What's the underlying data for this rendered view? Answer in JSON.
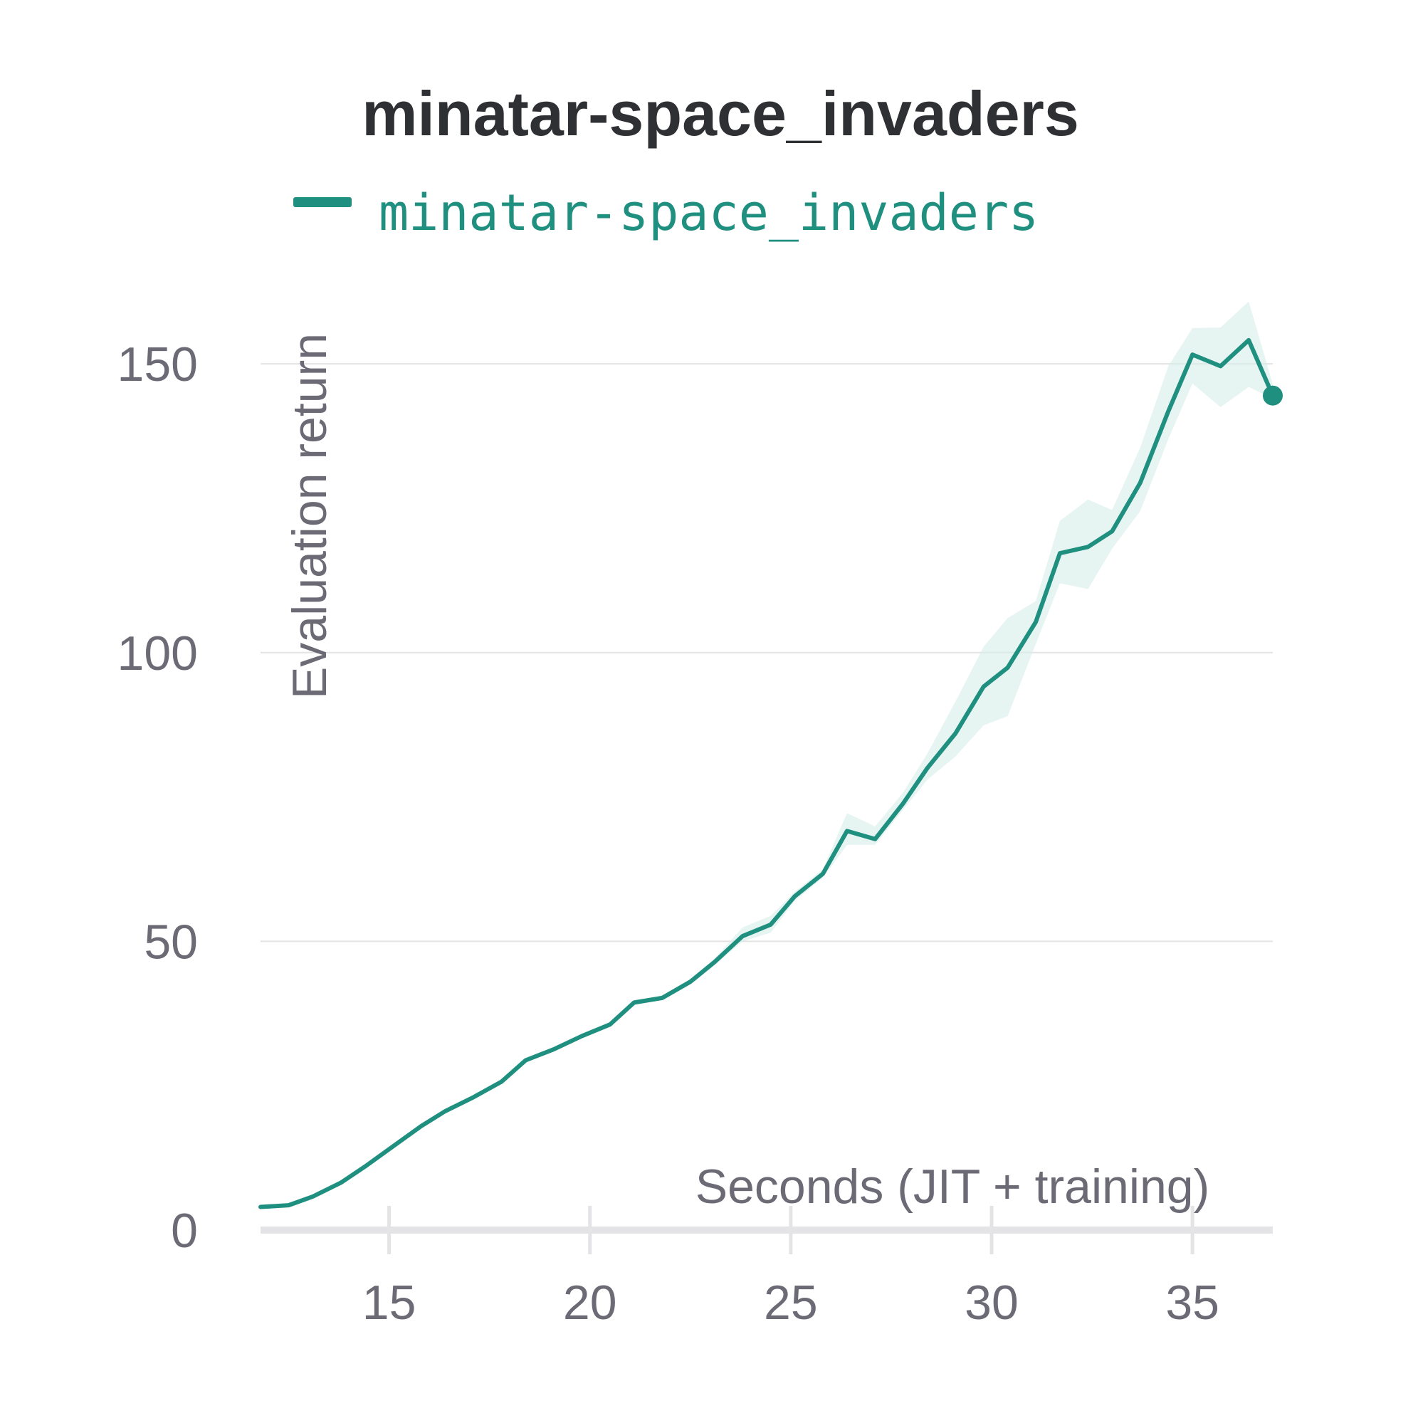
{
  "colors": {
    "series": "#1f8f80",
    "band": "#d6ede9",
    "grid": "#e3e3e3",
    "axis": "#e4e4e6",
    "text": "#6b6a75",
    "title": "#2f3034"
  },
  "chart_data": {
    "type": "line",
    "title": "minatar-space_invaders",
    "xlabel": "Seconds (JIT + training)",
    "ylabel": "Evaluation return",
    "xlim": [
      11.8,
      37.0
    ],
    "ylim": [
      0,
      160
    ],
    "xticks": [
      15,
      20,
      25,
      30,
      35
    ],
    "yticks": [
      0,
      50,
      100,
      150
    ],
    "grid": "horizontal",
    "legend": "top",
    "series": [
      {
        "name": "minatar-space_invaders",
        "x": [
          11.8,
          12.5,
          13.1,
          13.8,
          14.4,
          15.1,
          15.8,
          16.4,
          17.1,
          17.8,
          18.4,
          19.1,
          19.8,
          20.5,
          21.1,
          21.8,
          22.5,
          23.1,
          23.8,
          24.5,
          25.1,
          25.8,
          26.4,
          27.1,
          27.8,
          28.4,
          29.1,
          29.8,
          30.4,
          31.1,
          31.7,
          32.4,
          33.0,
          33.7,
          34.4,
          35.0,
          35.7,
          36.4,
          37.0
        ],
        "y": [
          4.0,
          4.3,
          5.8,
          8.2,
          11.0,
          14.5,
          18.0,
          20.6,
          23.0,
          25.7,
          29.4,
          31.3,
          33.6,
          35.6,
          39.4,
          40.2,
          43.0,
          46.4,
          50.9,
          52.9,
          57.8,
          61.7,
          69.1,
          67.7,
          73.9,
          80.0,
          86.0,
          94.1,
          97.4,
          105.3,
          117.2,
          118.3,
          121.0,
          129.4,
          141.8,
          151.6,
          149.6,
          154.1,
          144.5
        ],
        "y_lower": [
          4.0,
          4.3,
          5.8,
          8.2,
          11.0,
          14.5,
          18.0,
          20.6,
          23.0,
          25.7,
          29.0,
          31.0,
          33.2,
          35.2,
          39.0,
          39.8,
          42.5,
          45.8,
          50.0,
          51.5,
          57.0,
          61.0,
          66.7,
          66.7,
          72.8,
          78.0,
          82.0,
          87.4,
          89.0,
          101.5,
          112.0,
          111.0,
          118.0,
          124.5,
          137.0,
          146.6,
          142.5,
          146.0,
          144.0
        ],
        "y_upper": [
          4.0,
          4.3,
          5.8,
          8.2,
          11.0,
          14.5,
          18.0,
          20.6,
          23.0,
          25.7,
          29.8,
          31.6,
          34.0,
          36.0,
          39.8,
          40.6,
          43.5,
          47.0,
          52.4,
          54.4,
          58.6,
          62.5,
          72.2,
          69.9,
          75.8,
          82.5,
          91.5,
          101.0,
          106.0,
          108.9,
          122.8,
          126.5,
          124.7,
          135.5,
          149.6,
          156.2,
          156.3,
          160.8,
          146.5
        ]
      }
    ]
  }
}
